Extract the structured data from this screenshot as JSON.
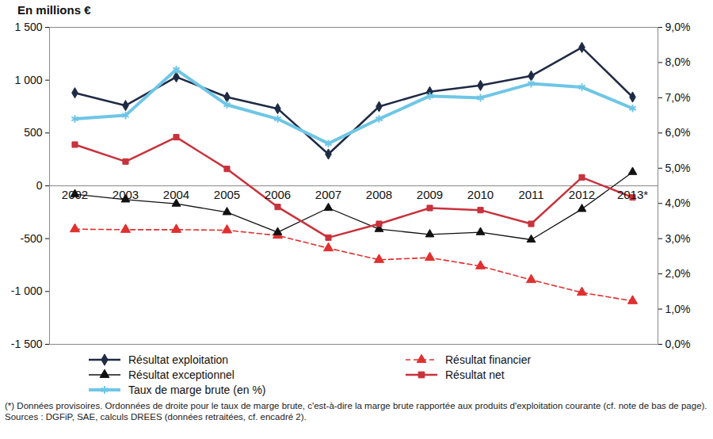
{
  "chart_data": {
    "type": "line",
    "title": "En millions €",
    "notes": [
      "(*) Données provisoires. Ordonnées de droite pour le taux de marge brute, c'est-à-dire la marge brute rapportée aux produits d'exploitation courante (cf. note de bas de page).",
      "Sources : DGFiP, SAE, calculs DREES (données retraitées, cf. encadré 2)."
    ],
    "categories": [
      "2002",
      "2003",
      "2004",
      "2005",
      "2006",
      "2007",
      "2008",
      "2009",
      "2010",
      "2011",
      "2012",
      "2013*"
    ],
    "ylim": [
      -1500,
      1500
    ],
    "yticks": [
      {
        "value": -1500,
        "label": "-1 500"
      },
      {
        "value": -1000,
        "label": "-1 000"
      },
      -500,
      0,
      500,
      {
        "value": 1000,
        "label": "1 000"
      },
      {
        "value": 1500,
        "label": "1 500"
      }
    ],
    "y2lim": [
      0,
      9
    ],
    "y2ticks": [
      {
        "value": 0,
        "label": "0,0%"
      },
      {
        "value": 1,
        "label": "1,0%"
      },
      {
        "value": 2,
        "label": "2,0%"
      },
      {
        "value": 3,
        "label": "3,0%"
      },
      {
        "value": 4,
        "label": "4,0%"
      },
      {
        "value": 5,
        "label": "5,0%"
      },
      {
        "value": 6,
        "label": "6,0%"
      },
      {
        "value": 7,
        "label": "7,0%"
      },
      {
        "value": 8,
        "label": "8,0%"
      },
      {
        "value": 9,
        "label": "9,0%"
      }
    ],
    "grid": false,
    "legend": "bottom",
    "series": [
      {
        "name": "Résultat exploitation",
        "color": "#1f2a44",
        "marker": "diamond",
        "line_style": "solid",
        "values": [
          880,
          760,
          1030,
          840,
          730,
          300,
          750,
          890,
          950,
          1040,
          1310,
          840
        ]
      },
      {
        "name": "Résultat financier",
        "color": "#e0302f",
        "marker": "triangle",
        "line_style": "dashed",
        "values": [
          -410,
          -415,
          -415,
          -420,
          -470,
          -590,
          -700,
          -680,
          -760,
          -890,
          -1010,
          -1090
        ]
      },
      {
        "name": "Résultat exceptionnel",
        "color": "#111111",
        "marker": "triangle",
        "line_style": "solid",
        "values": [
          -80,
          -130,
          -170,
          -250,
          -440,
          -210,
          -410,
          -460,
          -440,
          -510,
          -220,
          130
        ]
      },
      {
        "name": "Résultat net",
        "color": "#c8323c",
        "marker": "square",
        "line_style": "solid",
        "values": [
          390,
          230,
          460,
          160,
          -200,
          -490,
          -360,
          -210,
          -230,
          -360,
          80,
          -110
        ]
      },
      {
        "name": "Taux de marge brute (en %)",
        "color": "#6ec6e6",
        "marker": "asterisk",
        "line_style": "solid",
        "axis": "y2",
        "values": [
          6.4,
          6.5,
          7.8,
          6.8,
          6.4,
          5.7,
          6.4,
          7.05,
          7.0,
          7.4,
          7.3,
          6.7
        ]
      }
    ]
  }
}
